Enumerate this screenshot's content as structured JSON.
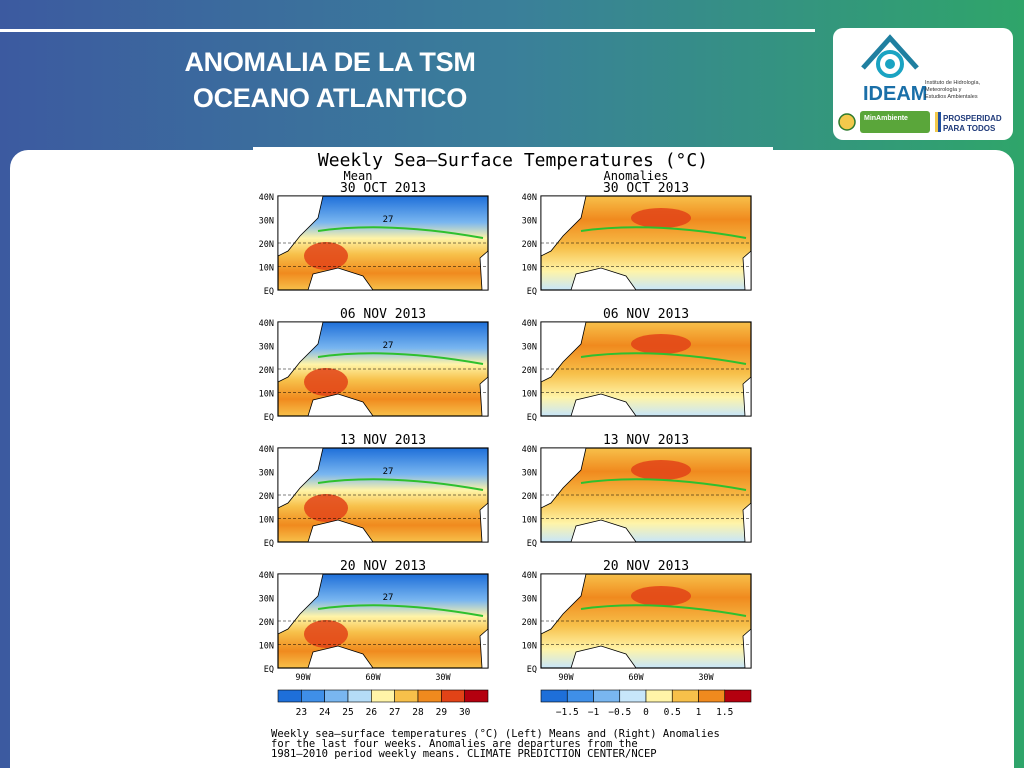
{
  "slide": {
    "title_line1": "ANOMALIA DE LA TSM",
    "title_line2": "OCEANO ATLANTICO"
  },
  "logo": {
    "name": "IDEAM",
    "subtitle_lines": [
      "Instituto de Hidrología,",
      "Meteorología y",
      "Estudios Ambientales"
    ],
    "ministry": "MinAmbiente",
    "slogan_line1": "PROSPERIDAD",
    "slogan_line2": "PARA TODOS"
  },
  "figure": {
    "title": "Weekly Sea—Surface Temperatures (°C)",
    "left_header": "Mean",
    "right_header": "Anomalies",
    "dates": [
      "30 OCT 2013",
      "06 NOV 2013",
      "13 NOV 2013",
      "20 NOV 2013"
    ],
    "lat_labels": [
      "40N",
      "30N",
      "20N",
      "10N",
      "EQ"
    ],
    "lon_labels": [
      "90W",
      "60W",
      "30W"
    ],
    "mean_contour_label": "27",
    "mean_scale": {
      "labels": [
        "23",
        "24",
        "25",
        "26",
        "27",
        "28",
        "29",
        "30"
      ],
      "colors": [
        "#1e6fd9",
        "#3f8fe8",
        "#79b6f0",
        "#b5dcf7",
        "#fff4a8",
        "#f7c04a",
        "#f08a1e",
        "#e24317",
        "#b4000f"
      ]
    },
    "anom_scale": {
      "labels": [
        "−1.5",
        "−1",
        "−0.5",
        "0",
        "0.5",
        "1",
        "1.5"
      ],
      "colors": [
        "#1e6fd9",
        "#3f8fe8",
        "#79b6f0",
        "#c7e6fa",
        "#fff4a8",
        "#f7c04a",
        "#f08a1e",
        "#b4000f"
      ]
    },
    "caption_lines": [
      "Weekly sea—surface temperatures (°C) (Left) Means and (Right) Anomalies",
      "for the last four weeks. Anomalies are departures from the",
      "1981—2010 period weekly means. CLIMATE PREDICTION CENTER/NCEP"
    ]
  }
}
